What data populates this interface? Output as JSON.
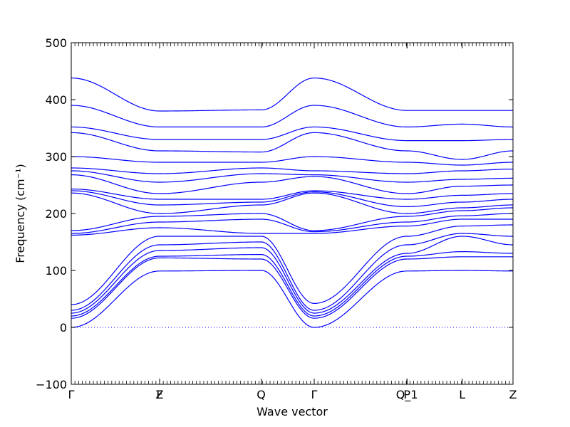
{
  "chart_data": {
    "type": "line",
    "title": "",
    "xlabel": "Wave vector",
    "ylabel": "Frequency (cm⁻¹)",
    "ylim": [
      -100,
      500
    ],
    "yticks": [
      -100,
      0,
      100,
      200,
      300,
      400,
      500
    ],
    "zero_line": {
      "y": 0,
      "style": "dotted"
    },
    "grid": false,
    "line_color": "#0000ff",
    "high_symmetry_points": [
      {
        "label": "Γ",
        "x": 0.0
      },
      {
        "label": "F",
        "x": 0.2
      },
      {
        "label": "Z",
        "x": 0.2
      },
      {
        "label": "Q",
        "x": 0.43
      },
      {
        "label": "Γ",
        "x": 0.55
      },
      {
        "label": "P",
        "x": 0.76
      },
      {
        "label": "Q_1",
        "x": 0.76
      },
      {
        "label": "L",
        "x": 0.885
      },
      {
        "label": "Z",
        "x": 1.0
      }
    ],
    "segment_endpoints": [
      {
        "x": 0.0,
        "freqs": [
          0,
          16,
          20,
          25,
          30,
          40,
          162,
          165,
          170,
          236,
          240,
          243,
          268,
          275,
          280,
          300,
          342,
          352,
          390,
          438
        ]
      },
      {
        "x": 0.2,
        "freqs": [
          99,
          122,
          125,
          135,
          145,
          160,
          175,
          185,
          195,
          200,
          215,
          225,
          235,
          255,
          270,
          290,
          310,
          330,
          352,
          380
        ]
      },
      {
        "x": 0.43,
        "freqs": [
          100,
          120,
          128,
          140,
          150,
          160,
          165,
          190,
          200,
          215,
          220,
          225,
          255,
          270,
          280,
          290,
          308,
          330,
          352,
          382
        ]
      },
      {
        "x": 0.55,
        "freqs": [
          0,
          16,
          20,
          25,
          30,
          42,
          165,
          168,
          170,
          236,
          238,
          240,
          265,
          268,
          275,
          300,
          342,
          352,
          390,
          438
        ]
      },
      {
        "x": 0.76,
        "freqs": [
          99,
          120,
          125,
          130,
          145,
          160,
          178,
          185,
          195,
          200,
          212,
          225,
          235,
          255,
          270,
          290,
          310,
          328,
          352,
          381
        ]
      },
      {
        "x": 0.885,
        "freqs": [
          100,
          124,
          133,
          160,
          165,
          178,
          190,
          196,
          205,
          210,
          220,
          232,
          248,
          260,
          275,
          285,
          295,
          328,
          357,
          381
        ]
      },
      {
        "x": 1.0,
        "freqs": [
          99,
          124,
          130,
          145,
          160,
          180,
          190,
          200,
          210,
          215,
          225,
          235,
          250,
          262,
          278,
          290,
          310,
          330,
          352,
          381
        ]
      }
    ]
  }
}
